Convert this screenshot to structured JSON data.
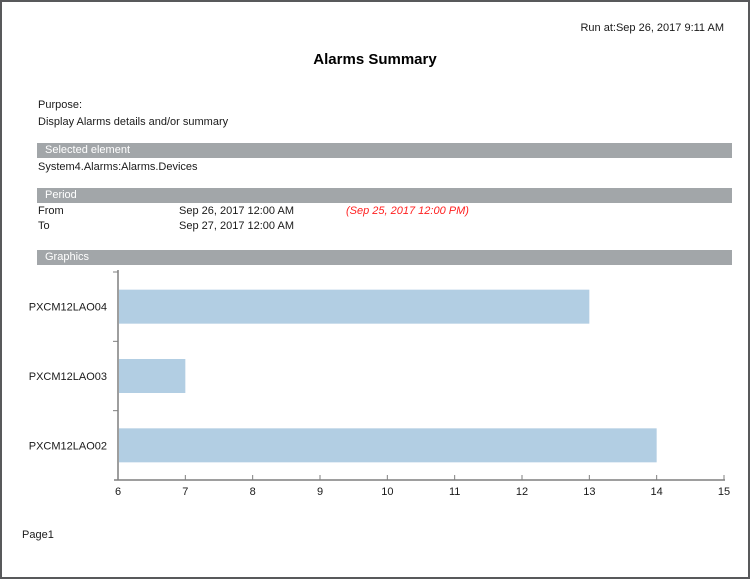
{
  "page": {
    "run_at": "Run at:Sep 26, 2017 9:11 AM",
    "title": "Alarms Summary",
    "footer": "Page1"
  },
  "purpose": {
    "label": "Purpose:",
    "text": "Display Alarms details and/or summary"
  },
  "selected_element": {
    "header": "Selected element",
    "value": "System4.Alarms:Alarms.Devices"
  },
  "period": {
    "header": "Period",
    "rows": [
      {
        "label": "From",
        "value": "Sep 26, 2017 12:00 AM",
        "note": "(Sep 25, 2017 12:00 PM)"
      },
      {
        "label": "To",
        "value": "Sep 27, 2017 12:00 AM",
        "note": ""
      }
    ]
  },
  "graphics": {
    "header": "Graphics"
  },
  "chart_data": {
    "type": "bar",
    "orientation": "horizontal",
    "title": "",
    "xlabel": "",
    "ylabel": "",
    "categories": [
      "PXCM12LAO04",
      "PXCM12LAO03",
      "PXCM12LAO02"
    ],
    "values": [
      13,
      7,
      14
    ],
    "xlim": [
      6,
      15
    ],
    "xticks": [
      6,
      7,
      8,
      9,
      10,
      11,
      12,
      13,
      14,
      15
    ],
    "grid": false,
    "legend": false,
    "bar_color": "#b2cee3",
    "axis_color": "#7f7f7f",
    "tick_label_color": "#1a1a1a"
  },
  "colors": {
    "page_border": "#58595b",
    "section_header_bg": "#a2a6a9",
    "section_header_text": "#ffffff",
    "note_red": "#ff2020",
    "text": "#1a1a1a"
  }
}
